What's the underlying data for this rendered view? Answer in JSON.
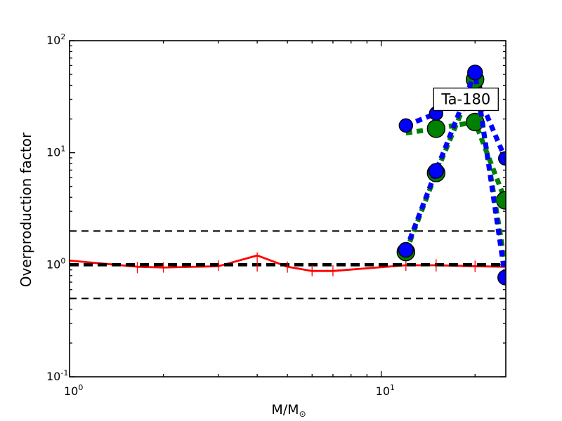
{
  "chart_data": {
    "type": "line",
    "title": "",
    "xlabel": "M/M",
    "xlabel_subscript": "⊙",
    "ylabel": "Overproduction factor",
    "xscale": "log",
    "yscale": "log",
    "xlim": [
      1,
      25.1
    ],
    "ylim": [
      0.1,
      100
    ],
    "grid": false,
    "annotation": {
      "text": "Ta-180",
      "x": 18.7,
      "y": 30
    },
    "x_tick_labels": [
      {
        "value": 1,
        "base": "10",
        "exp": "0"
      },
      {
        "value": 10,
        "base": "10",
        "exp": "1"
      }
    ],
    "y_tick_labels": [
      {
        "value": 0.1,
        "base": "10",
        "exp": "-1"
      },
      {
        "value": 1,
        "base": "10",
        "exp": "0"
      },
      {
        "value": 10,
        "base": "10",
        "exp": "1"
      },
      {
        "value": 100,
        "base": "10",
        "exp": "2"
      }
    ],
    "reference_lines": [
      {
        "name": "upper-band-limit",
        "y": 2.0,
        "color": "#000000",
        "style": "dashed-thin"
      },
      {
        "name": "lower-band-limit",
        "y": 0.5,
        "color": "#000000",
        "style": "dashed-thin"
      },
      {
        "name": "unity-line",
        "y": 1.0,
        "color": "#000000",
        "style": "dashed-thick"
      }
    ],
    "series": [
      {
        "name": "low-mass-models-red",
        "color": "#ff0000",
        "style": "solid",
        "marker": "none",
        "x": [
          1.0,
          1.65,
          2.0,
          3.0,
          4.0,
          5.0,
          6.0,
          7.0,
          12.0,
          15.0,
          20.0,
          25.0
        ],
        "y": [
          1.09,
          0.96,
          0.945,
          0.97,
          1.21,
          0.96,
          0.88,
          0.88,
          0.99,
          0.99,
          0.97,
          0.96
        ],
        "yerr_lo": [
          null,
          0.84,
          0.85,
          0.88,
          0.87,
          0.85,
          0.79,
          0.79,
          0.88,
          0.87,
          0.86,
          0.84
        ],
        "yerr_hi": [
          null,
          1.06,
          1.05,
          1.1,
          1.29,
          1.07,
          0.99,
          0.99,
          1.13,
          1.12,
          1.09,
          1.07
        ]
      },
      {
        "name": "massive-models-green-lower",
        "color": "#008000",
        "style": "dashed",
        "marker": "circle",
        "marker_radius": 12.5,
        "x": [
          12,
          15,
          20,
          25
        ],
        "y": [
          15.0,
          16.4,
          18.8,
          3.76
        ],
        "show_marker": [
          false,
          true,
          true,
          true
        ]
      },
      {
        "name": "massive-models-blue-lower",
        "color": "#0000ff",
        "style": "dashed",
        "marker": "circle",
        "marker_radius": 9.5,
        "x": [
          12,
          15,
          20,
          25
        ],
        "y": [
          17.5,
          22.4,
          38.0,
          8.9
        ],
        "show_marker": [
          true,
          true,
          true,
          true
        ]
      },
      {
        "name": "massive-models-green-upper",
        "color": "#008000",
        "style": "dashed",
        "marker": "circle",
        "marker_radius": 12.5,
        "x": [
          12,
          15,
          20,
          25
        ],
        "y": [
          1.3,
          6.6,
          45.0,
          1.0
        ],
        "show_marker": [
          true,
          true,
          true,
          false
        ]
      },
      {
        "name": "massive-models-blue-upper",
        "color": "#0000ff",
        "style": "dashed",
        "marker": "circle",
        "marker_radius": 10.5,
        "x": [
          12,
          15,
          20,
          25
        ],
        "y": [
          1.36,
          6.9,
          52.0,
          0.77
        ],
        "show_marker": [
          true,
          true,
          true,
          true
        ]
      }
    ]
  }
}
